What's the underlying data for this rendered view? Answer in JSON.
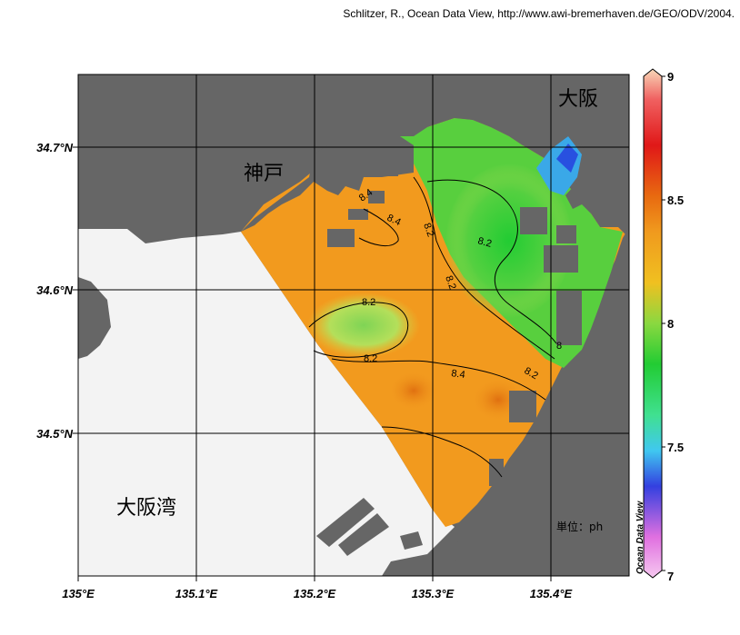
{
  "credit": "Schlitzer, R., Ocean Data View, http://www.awi-bremerhaven.de/GEO/ODV/2004.",
  "map": {
    "lon_ticks": [
      "135°E",
      "135.1°E",
      "135.2°E",
      "135.3°E",
      "135.4°E"
    ],
    "lat_ticks": [
      "34.7°N",
      "34.6°N",
      "34.5°N"
    ],
    "place_labels": {
      "kobe": "神戸",
      "osaka": "大阪",
      "osaka_bay": "大阪湾"
    },
    "unit_label": "単位：ph",
    "contour_labels": [
      "8.4",
      "8.4",
      "8.2",
      "8.2",
      "8.2",
      "8.2",
      "8.2",
      "8.4",
      "8.2",
      "8"
    ]
  },
  "colorbar": {
    "title": "Ocean Data View",
    "tick_labels": [
      "9",
      "8.5",
      "8",
      "7.5",
      "7"
    ],
    "range": [
      7,
      9
    ]
  },
  "colors": {
    "land": "#666666",
    "no_data_sea": "#f3f3f3",
    "high_ph": "#f29a1e",
    "mid_ph": "#b8e05a",
    "low_ph": "#22cc33"
  }
}
